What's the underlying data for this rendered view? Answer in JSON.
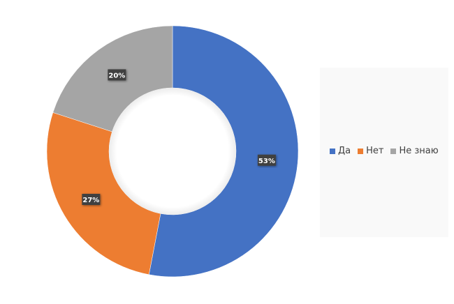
{
  "chart_data": {
    "type": "pie",
    "variant": "donut",
    "categories": [
      "Да",
      "Нет",
      "Не знаю"
    ],
    "values": [
      53,
      27,
      20
    ],
    "data_labels": [
      "53%",
      "27%",
      "20%"
    ],
    "colors": [
      "#4472c4",
      "#ed7d31",
      "#a5a5a5"
    ],
    "legend_placement": "right"
  }
}
